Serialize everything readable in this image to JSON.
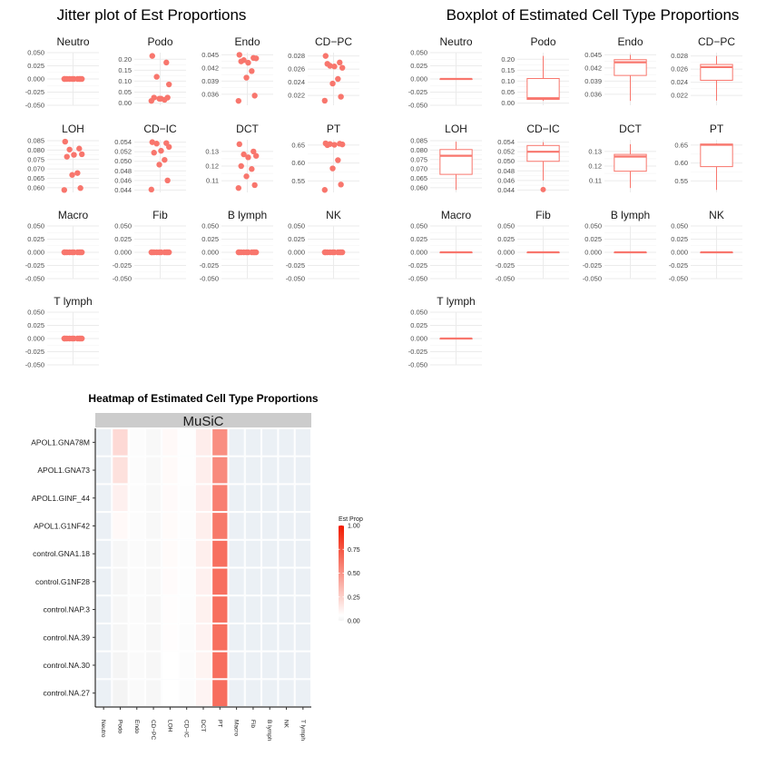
{
  "colors": {
    "point": "#F8766D",
    "grid": "#EBEBEB",
    "heat_low": "#F2F2F2",
    "heat_mid": "#FFFFFF",
    "heat_high": "#F21A00",
    "facet_strip": "#CCCCCC",
    "heat_panel": "#EBF0F5"
  },
  "chart_data": [
    {
      "type": "scatter",
      "title": "Jitter plot of Est Proportions",
      "facets": [
        {
          "name": "Neutro",
          "ylim": [
            -0.05,
            0.05
          ],
          "ticks": [
            "0.050",
            "0.025",
            "0.000",
            "-0.025",
            "-0.050"
          ],
          "tick_values": [
            0.05,
            0.025,
            0,
            -0.025,
            -0.05
          ],
          "values": [
            0,
            0,
            0,
            0,
            0,
            0,
            0,
            0,
            0,
            0
          ]
        },
        {
          "name": "Podo",
          "ylim": [
            -0.01,
            0.23
          ],
          "ticks": [
            "0.20",
            "0.15",
            "0.10",
            "0.05",
            "0.00"
          ],
          "tick_values": [
            0.2,
            0.15,
            0.1,
            0.05,
            0
          ],
          "values": [
            0.215,
            0.185,
            0.12,
            0.085,
            0.02,
            0.025,
            0.015,
            0.02,
            0.025,
            0.01
          ]
        },
        {
          "name": "Endo",
          "ylim": [
            0.0335,
            0.0455
          ],
          "ticks": [
            "0.045",
            "0.042",
            "0.039",
            "0.036"
          ],
          "tick_values": [
            0.045,
            0.042,
            0.039,
            0.036
          ],
          "values": [
            0.045,
            0.0443,
            0.0438,
            0.0442,
            0.0432,
            0.0435,
            0.0413,
            0.0398,
            0.0357,
            0.0345
          ]
        },
        {
          "name": "CD−PC",
          "ylim": [
            0.0205,
            0.0285
          ],
          "ticks": [
            "0.028",
            "0.026",
            "0.024",
            "0.022"
          ],
          "tick_values": [
            0.028,
            0.026,
            0.024,
            0.022
          ],
          "values": [
            0.028,
            0.027,
            0.0265,
            0.0262,
            0.0264,
            0.0268,
            0.0245,
            0.0238,
            0.0218,
            0.0212
          ]
        },
        {
          "name": "LOH",
          "ylim": [
            0.0575,
            0.0855
          ],
          "ticks": [
            "0.085",
            "0.080",
            "0.075",
            "0.070",
            "0.065",
            "0.060"
          ],
          "tick_values": [
            0.085,
            0.08,
            0.075,
            0.07,
            0.065,
            0.06
          ],
          "values": [
            0.0845,
            0.0808,
            0.0803,
            0.0778,
            0.0775,
            0.0765,
            0.0678,
            0.0668,
            0.0598,
            0.0588
          ]
        },
        {
          "name": "CD−IC",
          "ylim": [
            0.0435,
            0.0545
          ],
          "ticks": [
            "0.054",
            "0.052",
            "0.050",
            "0.048",
            "0.046",
            "0.044"
          ],
          "tick_values": [
            0.054,
            0.052,
            0.05,
            0.048,
            0.046,
            0.044
          ],
          "values": [
            0.054,
            0.0538,
            0.0537,
            0.053,
            0.0522,
            0.0518,
            0.0503,
            0.0493,
            0.046,
            0.0441
          ]
        },
        {
          "name": "DCT",
          "ylim": [
            0.102,
            0.138
          ],
          "ticks": [
            "0.13",
            "0.12",
            "0.11"
          ],
          "tick_values": [
            0.13,
            0.12,
            0.11
          ],
          "values": [
            0.135,
            0.13,
            0.128,
            0.127,
            0.126,
            0.12,
            0.118,
            0.113,
            0.107,
            0.105
          ]
        },
        {
          "name": "PT",
          "ylim": [
            0.518,
            0.665
          ],
          "ticks": [
            "0.65",
            "0.60",
            "0.55"
          ],
          "tick_values": [
            0.65,
            0.6,
            0.55
          ],
          "values": [
            0.655,
            0.654,
            0.653,
            0.652,
            0.651,
            0.65,
            0.608,
            0.585,
            0.54,
            0.525
          ]
        },
        {
          "name": "Macro",
          "ylim": [
            -0.05,
            0.05
          ],
          "ticks": [
            "0.050",
            "0.025",
            "0.000",
            "-0.025",
            "-0.050"
          ],
          "tick_values": [
            0.05,
            0.025,
            0,
            -0.025,
            -0.05
          ],
          "values": [
            0,
            0,
            0,
            0,
            0,
            0,
            0,
            0,
            0,
            0
          ]
        },
        {
          "name": "Fib",
          "ylim": [
            -0.05,
            0.05
          ],
          "ticks": [
            "0.050",
            "0.025",
            "0.000",
            "-0.025",
            "-0.050"
          ],
          "tick_values": [
            0.05,
            0.025,
            0,
            -0.025,
            -0.05
          ],
          "values": [
            0,
            0,
            0,
            0,
            0,
            0,
            0,
            0,
            0,
            0
          ]
        },
        {
          "name": "B lymph",
          "ylim": [
            -0.05,
            0.05
          ],
          "ticks": [
            "0.050",
            "0.025",
            "0.000",
            "-0.025",
            "-0.050"
          ],
          "tick_values": [
            0.05,
            0.025,
            0,
            -0.025,
            -0.05
          ],
          "values": [
            0,
            0,
            0,
            0,
            0,
            0,
            0,
            0,
            0,
            0
          ]
        },
        {
          "name": "NK",
          "ylim": [
            -0.05,
            0.05
          ],
          "ticks": [
            "0.050",
            "0.025",
            "0.000",
            "-0.025",
            "-0.050"
          ],
          "tick_values": [
            0.05,
            0.025,
            0,
            -0.025,
            -0.05
          ],
          "values": [
            0,
            0,
            0,
            0,
            0,
            0,
            0,
            0,
            0,
            0
          ]
        },
        {
          "name": "T lymph",
          "ylim": [
            -0.05,
            0.05
          ],
          "ticks": [
            "0.050",
            "0.025",
            "0.000",
            "-0.025",
            "-0.050"
          ],
          "tick_values": [
            0.05,
            0.025,
            0,
            -0.025,
            -0.05
          ],
          "values": [
            0,
            0,
            0,
            0,
            0,
            0,
            0,
            0,
            0,
            0
          ]
        }
      ]
    },
    {
      "type": "box",
      "title": "Boxplot of Estimated Cell Type Proportions",
      "facets": [
        {
          "name": "Neutro",
          "ylim": [
            -0.05,
            0.05
          ],
          "ticks": [
            "0.050",
            "0.025",
            "0.000",
            "-0.025",
            "-0.050"
          ],
          "tick_values": [
            0.05,
            0.025,
            0,
            -0.025,
            -0.05
          ],
          "box": {
            "min": 0,
            "q1": 0,
            "median": 0,
            "q3": 0,
            "max": 0
          },
          "outliers": []
        },
        {
          "name": "Podo",
          "ylim": [
            -0.01,
            0.23
          ],
          "ticks": [
            "0.20",
            "0.15",
            "0.10",
            "0.05",
            "0.00"
          ],
          "tick_values": [
            0.2,
            0.15,
            0.1,
            0.05,
            0
          ],
          "box": {
            "min": 0.01,
            "q1": 0.017,
            "median": 0.022,
            "q3": 0.112,
            "max": 0.215
          },
          "outliers": []
        },
        {
          "name": "Endo",
          "ylim": [
            0.0335,
            0.0455
          ],
          "ticks": [
            "0.045",
            "0.042",
            "0.039",
            "0.036"
          ],
          "tick_values": [
            0.045,
            0.042,
            0.039,
            0.036
          ],
          "box": {
            "min": 0.0345,
            "q1": 0.0403,
            "median": 0.0433,
            "q3": 0.0439,
            "max": 0.045
          },
          "outliers": []
        },
        {
          "name": "CD−PC",
          "ylim": [
            0.0205,
            0.0285
          ],
          "ticks": [
            "0.028",
            "0.026",
            "0.024",
            "0.022"
          ],
          "tick_values": [
            0.028,
            0.026,
            0.024,
            0.022
          ],
          "box": {
            "min": 0.0212,
            "q1": 0.0243,
            "median": 0.0263,
            "q3": 0.0267,
            "max": 0.028
          },
          "outliers": []
        },
        {
          "name": "LOH",
          "ylim": [
            0.0575,
            0.0855
          ],
          "ticks": [
            "0.085",
            "0.080",
            "0.075",
            "0.070",
            "0.065",
            "0.060"
          ],
          "tick_values": [
            0.085,
            0.08,
            0.075,
            0.07,
            0.065,
            0.06
          ],
          "box": {
            "min": 0.0588,
            "q1": 0.0671,
            "median": 0.077,
            "q3": 0.0803,
            "max": 0.0845
          },
          "outliers": []
        },
        {
          "name": "CD−IC",
          "ylim": [
            0.0435,
            0.0545
          ],
          "ticks": [
            "0.054",
            "0.052",
            "0.050",
            "0.048",
            "0.046",
            "0.044"
          ],
          "tick_values": [
            0.054,
            0.052,
            0.05,
            0.048,
            0.046,
            0.044
          ],
          "box": {
            "min": 0.046,
            "q1": 0.05,
            "median": 0.052,
            "q3": 0.0533,
            "max": 0.054
          },
          "outliers": [
            0.0441
          ]
        },
        {
          "name": "DCT",
          "ylim": [
            0.102,
            0.138
          ],
          "ticks": [
            "0.13",
            "0.12",
            "0.11"
          ],
          "tick_values": [
            0.13,
            0.12,
            0.11
          ],
          "box": {
            "min": 0.105,
            "q1": 0.1165,
            "median": 0.1265,
            "q3": 0.128,
            "max": 0.135
          },
          "outliers": []
        },
        {
          "name": "PT",
          "ylim": [
            0.518,
            0.665
          ],
          "ticks": [
            "0.65",
            "0.60",
            "0.55"
          ],
          "tick_values": [
            0.65,
            0.6,
            0.55
          ],
          "box": {
            "min": 0.525,
            "q1": 0.59,
            "median": 0.651,
            "q3": 0.653,
            "max": 0.655
          },
          "outliers": []
        },
        {
          "name": "Macro",
          "ylim": [
            -0.05,
            0.05
          ],
          "ticks": [
            "0.050",
            "0.025",
            "0.000",
            "-0.025",
            "-0.050"
          ],
          "tick_values": [
            0.05,
            0.025,
            0,
            -0.025,
            -0.05
          ],
          "box": {
            "min": 0,
            "q1": 0,
            "median": 0,
            "q3": 0,
            "max": 0
          },
          "outliers": []
        },
        {
          "name": "Fib",
          "ylim": [
            -0.05,
            0.05
          ],
          "ticks": [
            "0.050",
            "0.025",
            "0.000",
            "-0.025",
            "-0.050"
          ],
          "tick_values": [
            0.05,
            0.025,
            0,
            -0.025,
            -0.05
          ],
          "box": {
            "min": 0,
            "q1": 0,
            "median": 0,
            "q3": 0,
            "max": 0
          },
          "outliers": []
        },
        {
          "name": "B lymph",
          "ylim": [
            -0.05,
            0.05
          ],
          "ticks": [
            "0.050",
            "0.025",
            "0.000",
            "-0.025",
            "-0.050"
          ],
          "tick_values": [
            0.05,
            0.025,
            0,
            -0.025,
            -0.05
          ],
          "box": {
            "min": 0,
            "q1": 0,
            "median": 0,
            "q3": 0,
            "max": 0
          },
          "outliers": []
        },
        {
          "name": "NK",
          "ylim": [
            -0.05,
            0.05
          ],
          "ticks": [
            "0.050",
            "0.025",
            "0.000",
            "-0.025",
            "-0.050"
          ],
          "tick_values": [
            0.05,
            0.025,
            0,
            -0.025,
            -0.05
          ],
          "box": {
            "min": 0,
            "q1": 0,
            "median": 0,
            "q3": 0,
            "max": 0
          },
          "outliers": []
        },
        {
          "name": "T lymph",
          "ylim": [
            -0.05,
            0.05
          ],
          "ticks": [
            "0.050",
            "0.025",
            "0.000",
            "-0.025",
            "-0.050"
          ],
          "tick_values": [
            0.05,
            0.025,
            0,
            -0.025,
            -0.05
          ],
          "box": {
            "min": 0,
            "q1": 0,
            "median": 0,
            "q3": 0,
            "max": 0
          },
          "outliers": []
        }
      ]
    },
    {
      "type": "heatmap",
      "title": "Heatmap of Estimated Cell Type Proportions",
      "facet_label": "MuSiC",
      "x_categories": [
        "Neutro",
        "Podo",
        "Endo",
        "CD−PC",
        "LOH",
        "CD−IC",
        "DCT",
        "PT",
        "Macro",
        "Fib",
        "B lymph",
        "NK",
        "T lymph"
      ],
      "y_categories": [
        "APOL1.GNA78M",
        "APOL1.GNA73",
        "APOL1.GINF_44",
        "APOL1.G1NF42",
        "control.GNA1.18",
        "control.G1NF28",
        "control.NAP.3",
        "control.NA.39",
        "control.NA.30",
        "control.NA.27"
      ],
      "values": [
        [
          0,
          0.215,
          0.045,
          0.028,
          0.085,
          0.054,
          0.135,
          0.525,
          0,
          0,
          0,
          0,
          0
        ],
        [
          0,
          0.185,
          0.044,
          0.027,
          0.081,
          0.054,
          0.13,
          0.54,
          0,
          0,
          0,
          0,
          0
        ],
        [
          0,
          0.12,
          0.044,
          0.026,
          0.08,
          0.053,
          0.128,
          0.585,
          0,
          0,
          0,
          0,
          0
        ],
        [
          0,
          0.085,
          0.044,
          0.026,
          0.078,
          0.052,
          0.127,
          0.608,
          0,
          0,
          0,
          0,
          0
        ],
        [
          0,
          0.025,
          0.043,
          0.026,
          0.077,
          0.052,
          0.126,
          0.65,
          0,
          0,
          0,
          0,
          0
        ],
        [
          0,
          0.02,
          0.043,
          0.027,
          0.076,
          0.05,
          0.12,
          0.651,
          0,
          0,
          0,
          0,
          0
        ],
        [
          0,
          0.025,
          0.041,
          0.024,
          0.068,
          0.049,
          0.118,
          0.652,
          0,
          0,
          0,
          0,
          0
        ],
        [
          0,
          0.02,
          0.04,
          0.024,
          0.067,
          0.046,
          0.113,
          0.653,
          0,
          0,
          0,
          0,
          0
        ],
        [
          0,
          0.015,
          0.036,
          0.022,
          0.06,
          0.044,
          0.107,
          0.654,
          0,
          0,
          0,
          0,
          0
        ],
        [
          0,
          0.01,
          0.035,
          0.021,
          0.059,
          0.044,
          0.105,
          0.655,
          0,
          0,
          0,
          0,
          0
        ]
      ],
      "legend": {
        "title": "Est Prop",
        "ticks": [
          "1.00",
          "0.75",
          "0.50",
          "0.25",
          "0.00"
        ],
        "tick_values": [
          1,
          0.75,
          0.5,
          0.25,
          0
        ],
        "range": [
          0,
          1
        ]
      }
    }
  ]
}
